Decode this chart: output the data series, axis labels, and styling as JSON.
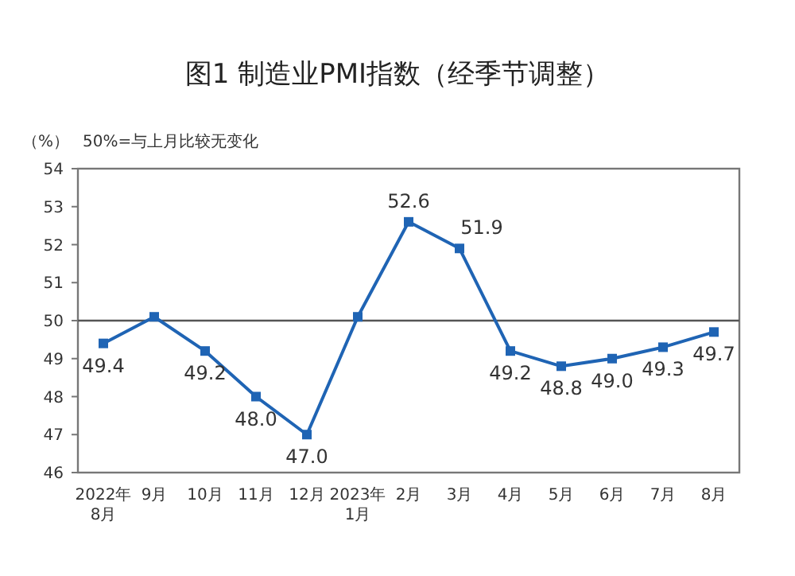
{
  "chart_data": {
    "type": "line",
    "title": "图1 制造业PMI指数（经季节调整）",
    "ylabel": "（%）",
    "annotations": [
      "50%=与上月比较无变化"
    ],
    "categories": [
      "2022年\n8月",
      "9月",
      "10月",
      "11月",
      "12月",
      "2023年\n1月",
      "2月",
      "3月",
      "4月",
      "5月",
      "6月",
      "7月",
      "8月"
    ],
    "series": [
      {
        "color": "#1f64b4",
        "values": [
          49.4,
          50.1,
          49.2,
          48.0,
          47.0,
          50.1,
          52.6,
          51.9,
          49.2,
          48.8,
          49.0,
          49.3,
          49.7
        ]
      }
    ],
    "value_labels": [
      "49.4",
      null,
      "49.2",
      "48.0",
      "47.0",
      null,
      "52.6",
      "51.9",
      "49.2",
      "48.8",
      "49.0",
      "49.3",
      "49.7"
    ],
    "ylim": [
      46,
      54
    ],
    "yticks": [
      46,
      47,
      48,
      49,
      50,
      51,
      52,
      53,
      54
    ],
    "ref_lines": [
      {
        "axis": "y",
        "value": 50,
        "color": "#555555"
      }
    ],
    "marker": "square",
    "line_style": "solid",
    "grid": false
  }
}
